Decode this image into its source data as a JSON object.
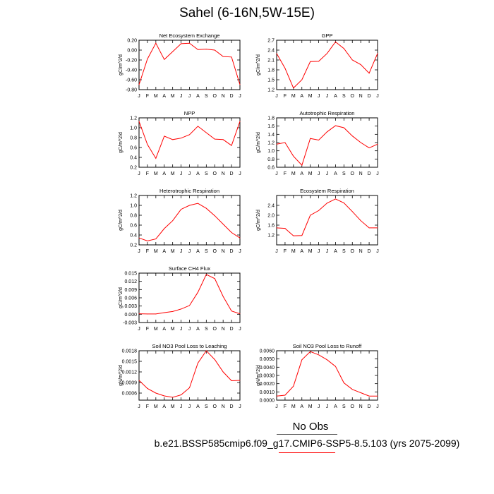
{
  "title": "Sahel (6-16N,5W-15E)",
  "legend": {
    "obs_label": "No Obs",
    "case_label": "b.e21.BSSP585cmip6.f09_g17.CMIP6-SSP5-8.5.103 (yrs 2075-2099)",
    "line_color": "#ff0000"
  },
  "chart_data": [
    {
      "type": "line",
      "title": "Net Ecosystem Exchange",
      "ylabel": "gC/m^2/d",
      "x": [
        "J",
        "F",
        "M",
        "A",
        "M",
        "J",
        "J",
        "A",
        "S",
        "O",
        "N",
        "D",
        "J"
      ],
      "ylim": [
        -0.8,
        0.2
      ],
      "yticks": [
        "0.20",
        "0.00",
        "-0.20",
        "-0.40",
        "-0.60",
        "-0.80"
      ],
      "yticks_values": [
        0.2,
        0.0,
        -0.2,
        -0.4,
        -0.6,
        -0.8
      ],
      "values": [
        -0.7,
        -0.18,
        0.14,
        -0.19,
        -0.03,
        0.13,
        0.14,
        0.01,
        0.02,
        0.0,
        -0.13,
        -0.14,
        -0.7
      ]
    },
    {
      "type": "line",
      "title": "GPP",
      "ylabel": "gC/m^2/d",
      "x": [
        "J",
        "F",
        "M",
        "A",
        "M",
        "J",
        "J",
        "A",
        "S",
        "O",
        "N",
        "D",
        "J"
      ],
      "ylim": [
        1.2,
        2.7
      ],
      "yticks": [
        "2.7",
        "2.4",
        "2.1",
        "1.8",
        "1.5",
        "1.2"
      ],
      "yticks_values": [
        2.7,
        2.4,
        2.1,
        1.8,
        1.5,
        1.2
      ],
      "values": [
        2.3,
        1.85,
        1.25,
        1.5,
        2.05,
        2.06,
        2.3,
        2.65,
        2.45,
        2.1,
        1.96,
        1.7,
        2.3
      ]
    },
    {
      "type": "line",
      "title": "NPP",
      "ylabel": "gC/m^2/d",
      "x": [
        "J",
        "F",
        "M",
        "A",
        "M",
        "J",
        "J",
        "A",
        "S",
        "O",
        "N",
        "D",
        "J"
      ],
      "ylim": [
        0.2,
        1.2
      ],
      "yticks": [
        "1.2",
        "1.0",
        "0.8",
        "0.6",
        "0.4",
        "0.2"
      ],
      "yticks_values": [
        1.2,
        1.0,
        0.8,
        0.6,
        0.4,
        0.2
      ],
      "values": [
        1.13,
        0.66,
        0.38,
        0.83,
        0.76,
        0.79,
        0.86,
        1.03,
        0.9,
        0.77,
        0.76,
        0.64,
        1.13
      ]
    },
    {
      "type": "line",
      "title": "Autotrophic Respiration",
      "ylabel": "gC/m^2/d",
      "x": [
        "J",
        "F",
        "M",
        "A",
        "M",
        "J",
        "J",
        "A",
        "S",
        "O",
        "N",
        "D",
        "J"
      ],
      "ylim": [
        0.6,
        1.8
      ],
      "yticks": [
        "1.8",
        "1.6",
        "1.4",
        "1.2",
        "1.0",
        "0.8",
        "0.6"
      ],
      "yticks_values": [
        1.8,
        1.6,
        1.4,
        1.2,
        1.0,
        0.8,
        0.6
      ],
      "values": [
        1.16,
        1.2,
        0.87,
        0.65,
        1.3,
        1.26,
        1.46,
        1.61,
        1.56,
        1.36,
        1.2,
        1.07,
        1.16
      ]
    },
    {
      "type": "line",
      "title": "Heterotrophic Respiration",
      "ylabel": "gC/m^2/d",
      "x": [
        "J",
        "F",
        "M",
        "A",
        "M",
        "J",
        "J",
        "A",
        "S",
        "O",
        "N",
        "D",
        "J"
      ],
      "ylim": [
        0.2,
        1.2
      ],
      "yticks": [
        "1.2",
        "1.0",
        "0.8",
        "0.6",
        "0.4",
        "0.2"
      ],
      "yticks_values": [
        1.2,
        1.0,
        0.8,
        0.6,
        0.4,
        0.2
      ],
      "values": [
        0.34,
        0.28,
        0.32,
        0.53,
        0.69,
        0.92,
        1.0,
        1.04,
        0.94,
        0.79,
        0.62,
        0.45,
        0.34
      ]
    },
    {
      "type": "line",
      "title": "Ecosystem Respiration",
      "ylabel": "gC/m^2/d",
      "x": [
        "J",
        "F",
        "M",
        "A",
        "M",
        "J",
        "J",
        "A",
        "S",
        "O",
        "N",
        "D",
        "J"
      ],
      "ylim": [
        0.8,
        2.8
      ],
      "yticks": [
        "2.4",
        "2.0",
        "1.6",
        "1.2"
      ],
      "yticks_values": [
        2.4,
        2.0,
        1.6,
        1.2
      ],
      "values": [
        1.49,
        1.47,
        1.17,
        1.18,
        2.0,
        2.19,
        2.49,
        2.66,
        2.5,
        2.15,
        1.78,
        1.49,
        1.49
      ]
    },
    {
      "type": "line",
      "title": "Surface CH4 Flux",
      "ylabel": "gC/m^2/d",
      "x": [
        "J",
        "F",
        "M",
        "A",
        "M",
        "J",
        "J",
        "A",
        "S",
        "O",
        "N",
        "D",
        "J"
      ],
      "ylim": [
        -0.003,
        0.015
      ],
      "yticks": [
        "0.015",
        "0.012",
        "0.009",
        "0.006",
        "0.003",
        "0.000",
        "-0.003"
      ],
      "yticks_values": [
        0.015,
        0.012,
        0.009,
        0.006,
        0.003,
        0.0,
        -0.003
      ],
      "values": [
        0.0002,
        0.0001,
        0.0001,
        0.0006,
        0.001,
        0.0019,
        0.0032,
        0.008,
        0.0145,
        0.013,
        0.0065,
        0.0012,
        0.0002
      ]
    },
    {
      "type": "line",
      "title": "Soil NO3 Pool Loss to Leaching",
      "ylabel": "gN/m^2/d",
      "x": [
        "J",
        "F",
        "M",
        "A",
        "M",
        "J",
        "J",
        "A",
        "S",
        "O",
        "N",
        "D",
        "J"
      ],
      "ylim": [
        0.0004,
        0.0018
      ],
      "yticks": [
        "0.0018",
        "0.0015",
        "0.0012",
        "0.0009",
        "0.0006"
      ],
      "yticks_values": [
        0.0018,
        0.0015,
        0.0012,
        0.0009,
        0.0006
      ],
      "values": [
        0.00096,
        0.00073,
        0.0006,
        0.00052,
        0.00048,
        0.00055,
        0.00075,
        0.00145,
        0.0018,
        0.00155,
        0.0012,
        0.00095,
        0.00096
      ]
    },
    {
      "type": "line",
      "title": "Soil NO3 Pool Loss to Runoff",
      "ylabel": "gN/m^2/d",
      "x": [
        "J",
        "F",
        "M",
        "A",
        "M",
        "J",
        "J",
        "A",
        "S",
        "O",
        "N",
        "D",
        "J"
      ],
      "ylim": [
        0.0,
        0.006
      ],
      "yticks": [
        "0.0060",
        "0.0050",
        "0.0040",
        "0.0030",
        "0.0020",
        "0.0010",
        "0.0000"
      ],
      "yticks_values": [
        0.006,
        0.005,
        0.004,
        0.003,
        0.002,
        0.001,
        0.0
      ],
      "values": [
        0.0005,
        0.0006,
        0.0017,
        0.0049,
        0.0059,
        0.0055,
        0.0049,
        0.0041,
        0.0021,
        0.0013,
        0.0009,
        0.0005,
        0.0005
      ]
    }
  ]
}
